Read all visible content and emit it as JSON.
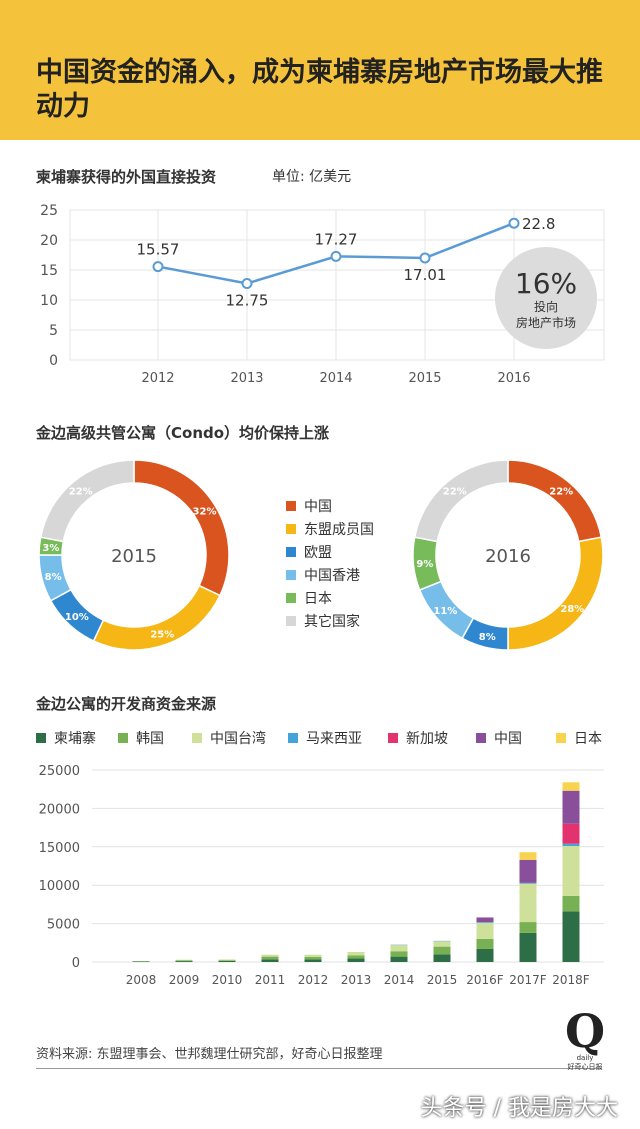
{
  "header": {
    "title": "中国资金的涌入，成为柬埔寨房地产市场最大推动力"
  },
  "colors": {
    "header_bg": "#f5c33b",
    "line": "#5b9bd5"
  },
  "chart_data": [
    {
      "type": "line",
      "title": "柬埔寨获得的外国直接投资",
      "unit": "单位: 亿美元",
      "x": [
        "2012",
        "2013",
        "2014",
        "2015",
        "2016"
      ],
      "values": [
        15.57,
        12.75,
        17.27,
        17.01,
        22.8
      ],
      "ylim": [
        0,
        25
      ],
      "yticks": [
        0,
        5,
        10,
        15,
        20,
        25
      ],
      "grid": true,
      "annotation": {
        "big": "16%",
        "line1": "投向",
        "line2": "房地产市场"
      }
    },
    {
      "type": "pie",
      "title": "金边高级共管公寓（Condo）均价保持上涨",
      "center_label": "2015",
      "categories": [
        "中国",
        "东盟成员国",
        "欧盟",
        "中国香港",
        "日本",
        "其它国家"
      ],
      "values": [
        32,
        25,
        10,
        8,
        3,
        22
      ],
      "labels": [
        "32%",
        "25%",
        "10%",
        "8%",
        "3%",
        "22%"
      ],
      "colors": [
        "#d9541e",
        "#f5b616",
        "#2f87d0",
        "#76bde9",
        "#78bb5a",
        "#d7d7d7"
      ]
    },
    {
      "type": "pie",
      "center_label": "2016",
      "categories": [
        "中国",
        "东盟成员国",
        "欧盟",
        "中国香港",
        "日本",
        "其它国家"
      ],
      "values": [
        22,
        28,
        8,
        11,
        9,
        22
      ],
      "labels": [
        "22%",
        "28%",
        "8%",
        "11%",
        "9%",
        "22%"
      ],
      "colors": [
        "#d9541e",
        "#f5b616",
        "#2f87d0",
        "#76bde9",
        "#78bb5a",
        "#d7d7d7"
      ]
    },
    {
      "type": "bar",
      "title": "金边公寓的开发商资金来源",
      "categories": [
        "2008",
        "2009",
        "2010",
        "2011",
        "2012",
        "2013",
        "2014",
        "2015",
        "2016F",
        "2017F",
        "2018F"
      ],
      "ylim": [
        0,
        25000
      ],
      "yticks": [
        0,
        5000,
        10000,
        15000,
        20000,
        25000
      ],
      "grid": true,
      "series": [
        {
          "name": "柬埔寨",
          "color": "#2e6e47",
          "values": [
            60,
            120,
            130,
            350,
            350,
            450,
            700,
            1000,
            1700,
            3800,
            6600
          ]
        },
        {
          "name": "韩国",
          "color": "#77b153",
          "values": [
            50,
            100,
            100,
            350,
            300,
            400,
            700,
            1000,
            1300,
            1400,
            2000
          ]
        },
        {
          "name": "中国台湾",
          "color": "#cfe09a",
          "values": [
            20,
            80,
            100,
            250,
            300,
            450,
            800,
            700,
            2100,
            5000,
            6500
          ]
        },
        {
          "name": "马来西亚",
          "color": "#44a3d9",
          "values": [
            0,
            0,
            0,
            0,
            0,
            0,
            50,
            50,
            100,
            100,
            300
          ]
        },
        {
          "name": "新加坡",
          "color": "#e2336f",
          "values": [
            0,
            0,
            0,
            0,
            0,
            0,
            0,
            0,
            0,
            0,
            2600
          ]
        },
        {
          "name": "中国",
          "color": "#8a4f9b",
          "values": [
            0,
            0,
            0,
            0,
            0,
            0,
            0,
            0,
            600,
            3000,
            4300
          ]
        },
        {
          "name": "日本",
          "color": "#f7d34f",
          "values": [
            0,
            0,
            0,
            0,
            0,
            0,
            0,
            0,
            0,
            1000,
            1100
          ]
        }
      ]
    }
  ],
  "footer": {
    "source": "资料来源: 东盟理事会、世邦魏理仕研究部，好奇心日报整理",
    "logo_letter": "Q",
    "logo_sub1": "daily",
    "logo_sub2": "好奇心日报",
    "watermark": "头条号 / 我是房大大"
  }
}
